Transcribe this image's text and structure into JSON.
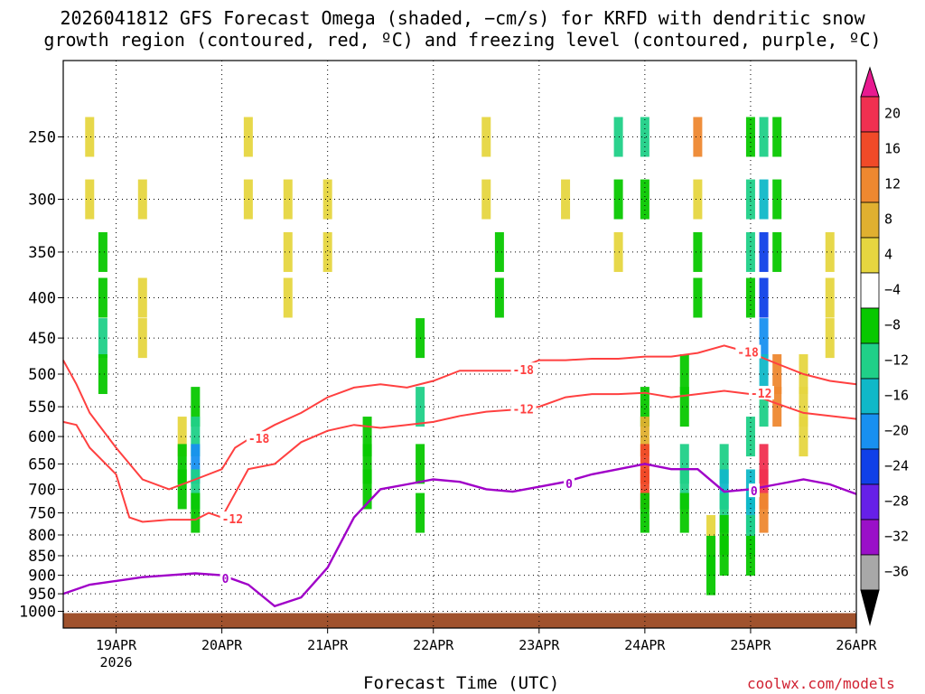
{
  "title_line1": "2026041812 GFS Forecast Omega (shaded, −cm/s) for KRFD with dendritic snow",
  "title_line2": "growth region (contoured, red, ºC) and freezing level (contoured, purple, ºC)",
  "credit": "coolwx.com/models",
  "chart_data": {
    "type": "heatmap",
    "xlabel": "Forecast Time (UTC)",
    "ylabel": "",
    "x_ticks": [
      "19APR",
      "20APR",
      "21APR",
      "22APR",
      "23APR",
      "24APR",
      "25APR",
      "26APR"
    ],
    "x_year": "2026",
    "xlim": [
      "2026-04-18T12",
      "2026-04-26T00"
    ],
    "y_ticks": [
      250,
      300,
      350,
      400,
      450,
      500,
      550,
      600,
      650,
      700,
      750,
      800,
      850,
      900,
      950,
      1000
    ],
    "ylim_hPa": [
      1000,
      200
    ],
    "colorbar": {
      "labels": [
        20,
        16,
        12,
        8,
        4,
        -4,
        -8,
        -12,
        -16,
        -20,
        -24,
        -28,
        -32,
        -36
      ],
      "colors": [
        "#f03050",
        "#f04a28",
        "#ee8830",
        "#e0b030",
        "#e6d640",
        "#ffffff",
        "#08c800",
        "#20d088",
        "#10b8c8",
        "#1890f0",
        "#1040e8",
        "#6620e8",
        "#9a10c8",
        "#a8a8a8"
      ],
      "overflow_high": "#e81a90",
      "overflow_low": "#000000"
    },
    "shading_cells": [
      [
        "2026-04-18T18",
        250,
        4
      ],
      [
        "2026-04-18T18",
        300,
        4
      ],
      [
        "2026-04-18T21",
        350,
        -8
      ],
      [
        "2026-04-18T21",
        400,
        -8
      ],
      [
        "2026-04-18T21",
        450,
        -12
      ],
      [
        "2026-04-18T21",
        500,
        -8
      ],
      [
        "2026-04-19T06",
        300,
        4
      ],
      [
        "2026-04-19T06",
        400,
        4
      ],
      [
        "2026-04-19T06",
        450,
        4
      ],
      [
        "2026-04-19T15",
        600,
        4
      ],
      [
        "2026-04-19T15",
        650,
        -8
      ],
      [
        "2026-04-19T15",
        700,
        -8
      ],
      [
        "2026-04-19T18",
        550,
        -8
      ],
      [
        "2026-04-19T18",
        600,
        -12
      ],
      [
        "2026-04-19T18",
        650,
        -20
      ],
      [
        "2026-04-19T18",
        700,
        -12
      ],
      [
        "2026-04-19T18",
        750,
        -8
      ],
      [
        "2026-04-20T06",
        250,
        4
      ],
      [
        "2026-04-20T06",
        300,
        4
      ],
      [
        "2026-04-20T15",
        300,
        4
      ],
      [
        "2026-04-20T15",
        350,
        4
      ],
      [
        "2026-04-20T15",
        400,
        4
      ],
      [
        "2026-04-21T00",
        300,
        4
      ],
      [
        "2026-04-21T00",
        350,
        4
      ],
      [
        "2026-04-21T09",
        600,
        -8
      ],
      [
        "2026-04-21T09",
        650,
        -8
      ],
      [
        "2026-04-21T09",
        700,
        -8
      ],
      [
        "2026-04-21T21",
        450,
        -8
      ],
      [
        "2026-04-21T21",
        550,
        -12
      ],
      [
        "2026-04-21T21",
        650,
        -8
      ],
      [
        "2026-04-21T21",
        750,
        -8
      ],
      [
        "2026-04-22T12",
        250,
        4
      ],
      [
        "2026-04-22T12",
        300,
        4
      ],
      [
        "2026-04-22T15",
        350,
        -8
      ],
      [
        "2026-04-22T15",
        400,
        -8
      ],
      [
        "2026-04-23T06",
        300,
        4
      ],
      [
        "2026-04-23T18",
        250,
        -12
      ],
      [
        "2026-04-23T18",
        300,
        -8
      ],
      [
        "2026-04-23T18",
        350,
        4
      ],
      [
        "2026-04-24T00",
        250,
        -12
      ],
      [
        "2026-04-24T00",
        300,
        -8
      ],
      [
        "2026-04-24T00",
        550,
        -8
      ],
      [
        "2026-04-24T00",
        600,
        8
      ],
      [
        "2026-04-24T00",
        650,
        16
      ],
      [
        "2026-04-24T00",
        700,
        16
      ],
      [
        "2026-04-24T00",
        750,
        -8
      ],
      [
        "2026-04-24T09",
        500,
        -8
      ],
      [
        "2026-04-24T09",
        550,
        -8
      ],
      [
        "2026-04-24T09",
        650,
        -12
      ],
      [
        "2026-04-24T09",
        700,
        -12
      ],
      [
        "2026-04-24T09",
        750,
        -8
      ],
      [
        "2026-04-24T12",
        250,
        12
      ],
      [
        "2026-04-24T12",
        300,
        4
      ],
      [
        "2026-04-24T12",
        350,
        -8
      ],
      [
        "2026-04-24T12",
        400,
        -8
      ],
      [
        "2026-04-24T15",
        800,
        4
      ],
      [
        "2026-04-24T15",
        850,
        -8
      ],
      [
        "2026-04-24T15",
        900,
        -8
      ],
      [
        "2026-04-24T18",
        650,
        -12
      ],
      [
        "2026-04-24T18",
        700,
        -16
      ],
      [
        "2026-04-24T18",
        750,
        -12
      ],
      [
        "2026-04-24T18",
        800,
        -8
      ],
      [
        "2026-04-24T18",
        850,
        -8
      ],
      [
        "2026-04-25T00",
        250,
        -8
      ],
      [
        "2026-04-25T00",
        300,
        -12
      ],
      [
        "2026-04-25T00",
        350,
        -12
      ],
      [
        "2026-04-25T00",
        400,
        -8
      ],
      [
        "2026-04-25T00",
        600,
        -12
      ],
      [
        "2026-04-25T00",
        700,
        -16
      ],
      [
        "2026-04-25T00",
        750,
        -16
      ],
      [
        "2026-04-25T00",
        800,
        -12
      ],
      [
        "2026-04-25T00",
        850,
        -8
      ],
      [
        "2026-04-25T03",
        250,
        -12
      ],
      [
        "2026-04-25T03",
        300,
        -16
      ],
      [
        "2026-04-25T03",
        350,
        -24
      ],
      [
        "2026-04-25T03",
        400,
        -24
      ],
      [
        "2026-04-25T03",
        450,
        -20
      ],
      [
        "2026-04-25T03",
        500,
        -16
      ],
      [
        "2026-04-25T03",
        550,
        -12
      ],
      [
        "2026-04-25T03",
        650,
        20
      ],
      [
        "2026-04-25T03",
        700,
        20
      ],
      [
        "2026-04-25T03",
        750,
        12
      ],
      [
        "2026-04-25T06",
        250,
        -8
      ],
      [
        "2026-04-25T06",
        300,
        -8
      ],
      [
        "2026-04-25T06",
        350,
        -8
      ],
      [
        "2026-04-25T06",
        500,
        12
      ],
      [
        "2026-04-25T06",
        550,
        12
      ],
      [
        "2026-04-25T12",
        500,
        4
      ],
      [
        "2026-04-25T12",
        550,
        4
      ],
      [
        "2026-04-25T12",
        600,
        4
      ],
      [
        "2026-04-25T18",
        350,
        4
      ],
      [
        "2026-04-25T18",
        400,
        4
      ],
      [
        "2026-04-25T18",
        450,
        4
      ]
    ],
    "series": [
      {
        "name": "-18",
        "color": "#ff4040",
        "points": [
          [
            "2026-04-18T12",
            480
          ],
          [
            "2026-04-18T15",
            515
          ],
          [
            "2026-04-18T18",
            560
          ],
          [
            "2026-04-19T00",
            620
          ],
          [
            "2026-04-19T06",
            680
          ],
          [
            "2026-04-19T12",
            700
          ],
          [
            "2026-04-19T18",
            680
          ],
          [
            "2026-04-20T00",
            660
          ],
          [
            "2026-04-20T03",
            620
          ],
          [
            "2026-04-20T06",
            605
          ],
          [
            "2026-04-20T12",
            580
          ],
          [
            "2026-04-20T18",
            560
          ],
          [
            "2026-04-21T00",
            535
          ],
          [
            "2026-04-21T06",
            520
          ],
          [
            "2026-04-21T12",
            515
          ],
          [
            "2026-04-21T18",
            520
          ],
          [
            "2026-04-22T00",
            510
          ],
          [
            "2026-04-22T06",
            495
          ],
          [
            "2026-04-22T12",
            495
          ],
          [
            "2026-04-22T18",
            495
          ],
          [
            "2026-04-23T00",
            480
          ],
          [
            "2026-04-23T06",
            480
          ],
          [
            "2026-04-23T12",
            478
          ],
          [
            "2026-04-23T18",
            478
          ],
          [
            "2026-04-24T00",
            475
          ],
          [
            "2026-04-24T06",
            475
          ],
          [
            "2026-04-24T12",
            470
          ],
          [
            "2026-04-24T18",
            460
          ],
          [
            "2026-04-25T00",
            470
          ],
          [
            "2026-04-25T06",
            485
          ],
          [
            "2026-04-25T12",
            500
          ],
          [
            "2026-04-25T18",
            510
          ],
          [
            "2026-04-26T00",
            515
          ]
        ]
      },
      {
        "name": "-12",
        "color": "#ff4040",
        "points": [
          [
            "2026-04-18T12",
            575
          ],
          [
            "2026-04-18T15",
            580
          ],
          [
            "2026-04-18T18",
            620
          ],
          [
            "2026-04-19T00",
            670
          ],
          [
            "2026-04-19T03",
            760
          ],
          [
            "2026-04-19T06",
            770
          ],
          [
            "2026-04-19T12",
            765
          ],
          [
            "2026-04-19T18",
            765
          ],
          [
            "2026-04-19T21",
            750
          ],
          [
            "2026-04-20T00",
            760
          ],
          [
            "2026-04-20T06",
            660
          ],
          [
            "2026-04-20T12",
            650
          ],
          [
            "2026-04-20T18",
            610
          ],
          [
            "2026-04-21T00",
            590
          ],
          [
            "2026-04-21T06",
            580
          ],
          [
            "2026-04-21T12",
            585
          ],
          [
            "2026-04-21T18",
            580
          ],
          [
            "2026-04-22T00",
            575
          ],
          [
            "2026-04-22T06",
            565
          ],
          [
            "2026-04-22T12",
            558
          ],
          [
            "2026-04-22T18",
            555
          ],
          [
            "2026-04-23T00",
            550
          ],
          [
            "2026-04-23T06",
            535
          ],
          [
            "2026-04-23T12",
            530
          ],
          [
            "2026-04-23T18",
            530
          ],
          [
            "2026-04-24T00",
            528
          ],
          [
            "2026-04-24T06",
            535
          ],
          [
            "2026-04-24T12",
            530
          ],
          [
            "2026-04-24T18",
            525
          ],
          [
            "2026-04-25T00",
            530
          ],
          [
            "2026-04-25T06",
            545
          ],
          [
            "2026-04-25T12",
            560
          ],
          [
            "2026-04-25T18",
            565
          ],
          [
            "2026-04-26T00",
            570
          ]
        ]
      },
      {
        "name": "0",
        "color": "#a000c8",
        "points": [
          [
            "2026-04-18T12",
            950
          ],
          [
            "2026-04-18T18",
            925
          ],
          [
            "2026-04-19T00",
            915
          ],
          [
            "2026-04-19T06",
            905
          ],
          [
            "2026-04-19T12",
            900
          ],
          [
            "2026-04-19T18",
            895
          ],
          [
            "2026-04-20T00",
            900
          ],
          [
            "2026-04-20T06",
            925
          ],
          [
            "2026-04-20T12",
            985
          ],
          [
            "2026-04-20T18",
            960
          ],
          [
            "2026-04-21T00",
            880
          ],
          [
            "2026-04-21T06",
            760
          ],
          [
            "2026-04-21T12",
            700
          ],
          [
            "2026-04-21T18",
            690
          ],
          [
            "2026-04-22T00",
            680
          ],
          [
            "2026-04-22T06",
            685
          ],
          [
            "2026-04-22T12",
            700
          ],
          [
            "2026-04-22T18",
            705
          ],
          [
            "2026-04-23T00",
            695
          ],
          [
            "2026-04-23T06",
            685
          ],
          [
            "2026-04-23T12",
            670
          ],
          [
            "2026-04-23T18",
            660
          ],
          [
            "2026-04-24T00",
            650
          ],
          [
            "2026-04-24T06",
            660
          ],
          [
            "2026-04-24T12",
            660
          ],
          [
            "2026-04-24T18",
            705
          ],
          [
            "2026-04-25T00",
            700
          ],
          [
            "2026-04-25T06",
            690
          ],
          [
            "2026-04-25T12",
            680
          ],
          [
            "2026-04-25T18",
            690
          ],
          [
            "2026-04-26T00",
            710
          ]
        ]
      }
    ],
    "contour_labels": [
      {
        "text": "-18",
        "x": "2026-04-20T06",
        "y": 605
      },
      {
        "text": "-12",
        "x": "2026-04-20T00",
        "y": 765
      },
      {
        "text": "0",
        "x": "2026-04-20T00",
        "y": 910
      },
      {
        "text": "-18",
        "x": "2026-04-22T18",
        "y": 495
      },
      {
        "text": "-12",
        "x": "2026-04-22T18",
        "y": 555
      },
      {
        "text": "0",
        "x": "2026-04-23T06",
        "y": 690
      },
      {
        "text": "-18",
        "x": "2026-04-24T21",
        "y": 470
      },
      {
        "text": "-12",
        "x": "2026-04-25T00",
        "y": 530
      },
      {
        "text": "0",
        "x": "2026-04-25T00",
        "y": 705
      }
    ]
  }
}
